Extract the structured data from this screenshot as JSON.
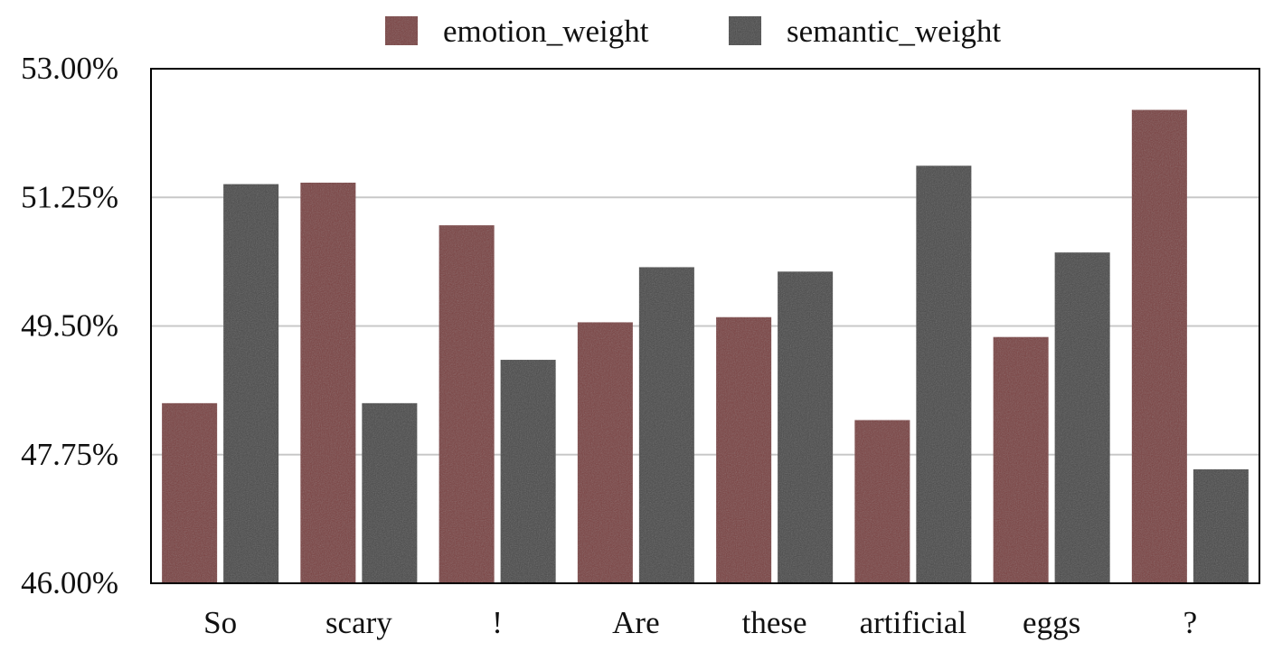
{
  "chart_data": {
    "type": "bar",
    "title": "",
    "xlabel": "",
    "ylabel": "",
    "categories": [
      "So",
      "scary",
      "!",
      "Are",
      "these",
      "artificial",
      "eggs",
      "?"
    ],
    "series": [
      {
        "name": "emotion_weight",
        "color": "#7a3f40",
        "values": [
          48.45,
          51.45,
          50.87,
          49.55,
          49.62,
          48.22,
          49.35,
          52.44
        ]
      },
      {
        "name": "semantic_weight",
        "color": "#4a4a4a",
        "values": [
          51.43,
          48.45,
          49.04,
          50.3,
          50.24,
          51.68,
          50.5,
          47.55
        ]
      }
    ],
    "ylim": [
      46.0,
      53.0
    ],
    "yticks": [
      "53.00%",
      "51.25%",
      "49.50%",
      "47.75%",
      "46.00%"
    ],
    "ytick_values": [
      53.0,
      51.25,
      49.5,
      47.75,
      46.0
    ],
    "grid": true,
    "legend_position": "top"
  }
}
